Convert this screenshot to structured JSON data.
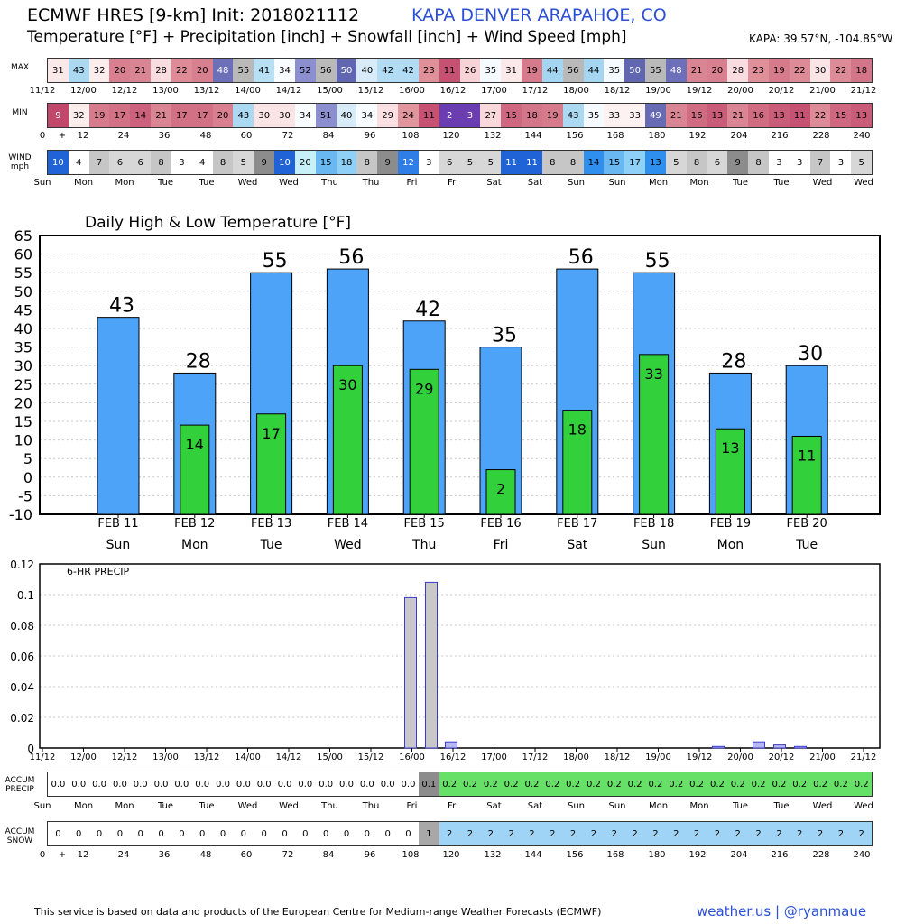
{
  "header": {
    "title": "ECMWF HRES [9-km] Init: 2018021112",
    "location": "KAPA DENVER ARAPAHOE, CO",
    "subtitle": "Temperature [°F] + Precipitation [inch] + Snowfall [inch] + Wind Speed [mph]",
    "coords": "KAPA: 39.57°N, -104.85°W"
  },
  "strips": {
    "max_label": "MAX",
    "min_label": "MIN",
    "wind_label": "WIND\nmph",
    "max_values": [
      "31",
      "43",
      "32",
      "20",
      "21",
      "28",
      "22",
      "20",
      "48",
      "55",
      "41",
      "34",
      "52",
      "56",
      "50",
      "40",
      "42",
      "42",
      "23",
      "11",
      "26",
      "35",
      "31",
      "19",
      "44",
      "56",
      "44",
      "35",
      "50",
      "55",
      "48",
      "21",
      "20",
      "28",
      "23",
      "19",
      "22",
      "30",
      "22",
      "18"
    ],
    "min_values": [
      "9",
      "32",
      "19",
      "17",
      "14",
      "21",
      "17",
      "17",
      "20",
      "43",
      "30",
      "30",
      "34",
      "51",
      "40",
      "34",
      "29",
      "24",
      "11",
      "2",
      "3",
      "27",
      "15",
      "18",
      "19",
      "43",
      "35",
      "33",
      "33",
      "49",
      "21",
      "16",
      "13",
      "21",
      "16",
      "13",
      "11",
      "22",
      "15",
      "13"
    ],
    "wind_values": [
      "10",
      "4",
      "7",
      "6",
      "6",
      "8",
      "3",
      "4",
      "8",
      "5",
      "9",
      "10",
      "20",
      "15",
      "18",
      "8",
      "9",
      "12",
      "3",
      "6",
      "5",
      "5",
      "11",
      "11",
      "8",
      "8",
      "14",
      "15",
      "17",
      "13",
      "5",
      "8",
      "6",
      "9",
      "8",
      "3",
      "3",
      "7",
      "3",
      "5"
    ],
    "date_ticks": [
      "11/12",
      "12/00",
      "12/12",
      "13/00",
      "13/12",
      "14/00",
      "14/12",
      "15/00",
      "15/12",
      "16/00",
      "16/12",
      "17/00",
      "17/12",
      "18/00",
      "18/12",
      "19/00",
      "19/12",
      "20/00",
      "20/12",
      "21/00",
      "21/12"
    ],
    "hour_ticks": [
      "0",
      "+",
      "12",
      "24",
      "36",
      "48",
      "60",
      "72",
      "84",
      "96",
      "108",
      "120",
      "132",
      "144",
      "156",
      "168",
      "180",
      "192",
      "204",
      "216",
      "228",
      "240"
    ],
    "day_ticks": [
      "Sun",
      "Mon",
      "Mon",
      "Tue",
      "Tue",
      "Wed",
      "Wed",
      "Thu",
      "Thu",
      "Fri",
      "Fri",
      "Sat",
      "Sat",
      "Sun",
      "Sun",
      "Mon",
      "Mon",
      "Tue",
      "Tue",
      "Wed",
      "Wed"
    ]
  },
  "chart_data": [
    {
      "type": "bar",
      "title": "Daily High & Low Temperature [°F]",
      "categories": [
        "FEB 11",
        "FEB 12",
        "FEB 13",
        "FEB 14",
        "FEB 15",
        "FEB 16",
        "FEB 17",
        "FEB 18",
        "FEB 19",
        "FEB 20"
      ],
      "weekdays": [
        "Sun",
        "Mon",
        "Tue",
        "Wed",
        "Thu",
        "Fri",
        "Sat",
        "Sun",
        "Mon",
        "Tue"
      ],
      "series": [
        {
          "name": "High",
          "values": [
            43,
            28,
            55,
            56,
            42,
            35,
            56,
            55,
            28,
            30
          ],
          "color": "#4da3f7"
        },
        {
          "name": "Low",
          "values": [
            null,
            14,
            17,
            30,
            29,
            2,
            18,
            33,
            13,
            11
          ],
          "color": "#32d03a"
        }
      ],
      "ylim": [
        -10,
        65
      ],
      "yticks": [
        -10,
        -5,
        0,
        5,
        10,
        15,
        20,
        25,
        30,
        35,
        40,
        45,
        50,
        55,
        60,
        65
      ],
      "grid": true
    },
    {
      "type": "bar",
      "title": "6-HR PRECIP",
      "x": [
        "16/00",
        "16/06",
        "16/12",
        "19/18",
        "20/06",
        "20/12",
        "20/18"
      ],
      "values": [
        0.098,
        0.108,
        0.004,
        0.001,
        0.004,
        0.002,
        0.001
      ],
      "ylim": [
        0,
        0.12
      ],
      "yticks": [
        "0",
        "0.02",
        "0.04",
        "0.06",
        "0.08",
        "0.1",
        "0.12"
      ],
      "xticks": [
        "11/12",
        "12/00",
        "12/12",
        "13/00",
        "13/12",
        "14/00",
        "14/12",
        "15/00",
        "15/12",
        "16/00",
        "16/12",
        "17/00",
        "17/12",
        "18/00",
        "18/12",
        "19/00",
        "19/12",
        "20/00",
        "20/12",
        "21/00",
        "21/12"
      ],
      "grid": true
    },
    {
      "type": "table",
      "title": "ACCUM PRECIP",
      "label": "ACCUM\nPRECIP",
      "values": [
        "0.0",
        "0.0",
        "0.0",
        "0.0",
        "0.0",
        "0.0",
        "0.0",
        "0.0",
        "0.0",
        "0.0",
        "0.0",
        "0.0",
        "0.0",
        "0.0",
        "0.0",
        "0.0",
        "0.0",
        "0.0",
        "0.1",
        "0.2",
        "0.2",
        "0.2",
        "0.2",
        "0.2",
        "0.2",
        "0.2",
        "0.2",
        "0.2",
        "0.2",
        "0.2",
        "0.2",
        "0.2",
        "0.2",
        "0.2",
        "0.2",
        "0.2",
        "0.2",
        "0.2",
        "0.2",
        "0.2"
      ]
    },
    {
      "type": "table",
      "title": "ACCUM SNOW",
      "label": "ACCUM\nSNOW",
      "values": [
        "0",
        "0",
        "0",
        "0",
        "0",
        "0",
        "0",
        "0",
        "0",
        "0",
        "0",
        "0",
        "0",
        "0",
        "0",
        "0",
        "0",
        "0",
        "1",
        "2",
        "2",
        "2",
        "2",
        "2",
        "2",
        "2",
        "2",
        "2",
        "2",
        "2",
        "2",
        "2",
        "2",
        "2",
        "2",
        "2",
        "2",
        "2",
        "2",
        "2"
      ]
    }
  ],
  "footer": {
    "note": "This service is based on data and products of the European Centre for Medium-range Weather Forecasts (ECMWF)",
    "brand": "weather.us | @ryanmaue"
  }
}
